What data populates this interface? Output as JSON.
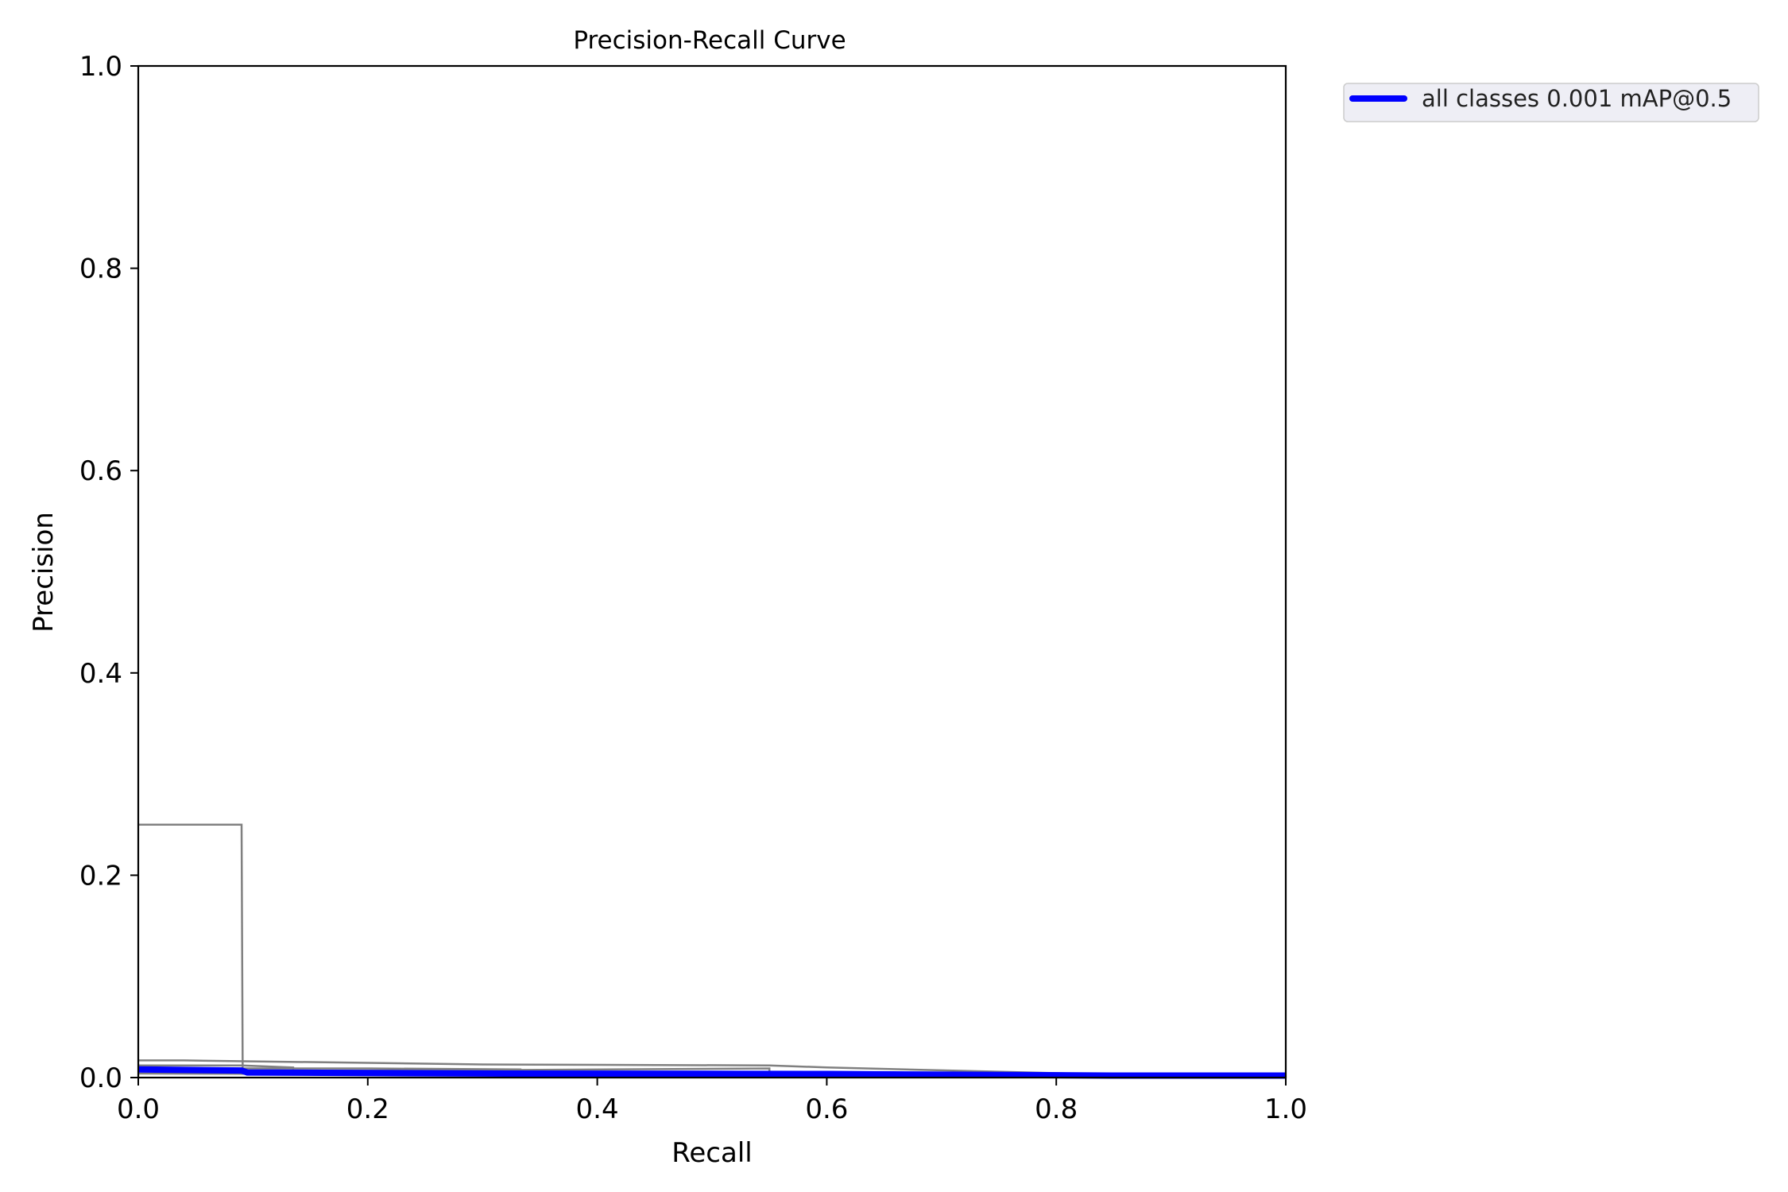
{
  "chart_data": {
    "type": "line",
    "title": "Precision-Recall Curve",
    "xlabel": "Recall",
    "ylabel": "Precision",
    "xlim": [
      0,
      1
    ],
    "ylim": [
      0,
      1
    ],
    "x_ticks": [
      "0.0",
      "0.2",
      "0.4",
      "0.6",
      "0.8",
      "1.0"
    ],
    "y_ticks": [
      "0.0",
      "0.2",
      "0.4",
      "0.6",
      "0.8",
      "1.0"
    ],
    "grid": false,
    "legend_position": "outside-top-right",
    "series": [
      {
        "name": "all classes 0.001 mAP@0.5",
        "color": "#0000ff",
        "emphasis": true,
        "points": [
          [
            0,
            0.008
          ],
          [
            0.09,
            0.007
          ],
          [
            0.095,
            0.005
          ],
          [
            0.3,
            0.004
          ],
          [
            0.6,
            0.0035
          ],
          [
            0.85,
            0.002
          ],
          [
            1.0,
            0.002
          ]
        ]
      },
      {
        "color": "#808080",
        "emphasis": false,
        "points": [
          [
            0,
            0.25
          ],
          [
            0.09,
            0.25
          ],
          [
            0.091,
            0.006
          ],
          [
            0.2,
            0.006
          ],
          [
            1.0,
            0.002
          ]
        ]
      },
      {
        "color": "#808080",
        "emphasis": false,
        "points": [
          [
            0,
            0.017
          ],
          [
            0.04,
            0.017
          ],
          [
            0.3,
            0.013
          ],
          [
            0.55,
            0.012
          ],
          [
            0.6,
            0.01
          ],
          [
            0.85,
            0.003
          ],
          [
            1.0,
            0.002
          ]
        ]
      },
      {
        "color": "#808080",
        "emphasis": false,
        "points": [
          [
            0,
            0.012
          ],
          [
            0.09,
            0.012
          ],
          [
            0.135,
            0.01
          ],
          [
            0.135,
            0.006
          ],
          [
            0.3,
            0.006
          ],
          [
            1.0,
            0.002
          ]
        ]
      },
      {
        "color": "#808080",
        "emphasis": false,
        "points": [
          [
            0,
            0.009
          ],
          [
            0.2,
            0.009
          ],
          [
            0.333,
            0.008
          ],
          [
            0.333,
            0.004
          ],
          [
            0.6,
            0.004
          ],
          [
            1.0,
            0.002
          ]
        ]
      },
      {
        "color": "#808080",
        "emphasis": false,
        "points": [
          [
            0,
            0.007
          ],
          [
            0.25,
            0.007
          ],
          [
            0.55,
            0.009
          ],
          [
            0.55,
            0.005
          ],
          [
            0.8,
            0.003
          ],
          [
            1.0,
            0.002
          ]
        ]
      },
      {
        "color": "#808080",
        "emphasis": false,
        "points": [
          [
            0,
            0.004
          ],
          [
            0.4,
            0.003
          ],
          [
            1.0,
            0.001
          ]
        ]
      }
    ]
  }
}
